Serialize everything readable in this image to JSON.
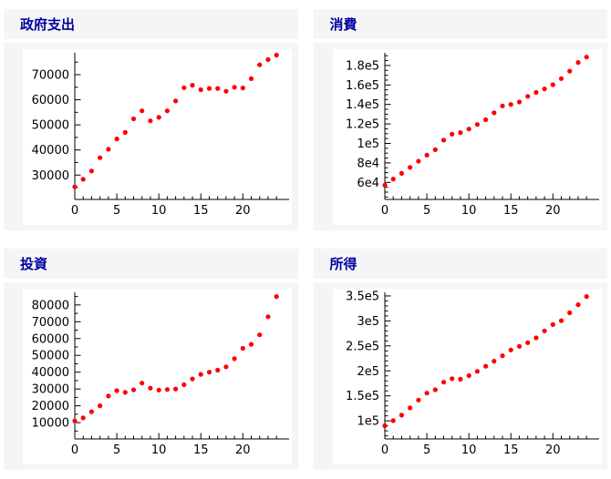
{
  "styles": {
    "panel_bg": "#f5f5f5",
    "chart_bg": "#ffffff",
    "title_color": "#0000A0",
    "axis_color": "#000000",
    "dot_color": "#ff0000"
  },
  "chart_data": [
    {
      "type": "scatter",
      "title": "政府支出",
      "x": [
        0,
        1,
        2,
        3,
        4,
        5,
        6,
        7,
        8,
        9,
        10,
        11,
        12,
        13,
        14,
        15,
        16,
        17,
        18,
        19,
        20,
        21,
        22,
        23,
        24
      ],
      "values": [
        25300,
        28300,
        31600,
        36900,
        40300,
        44400,
        47000,
        52400,
        55600,
        51600,
        53000,
        55600,
        59500,
        64800,
        65800,
        64000,
        64500,
        64500,
        63400,
        65000,
        64700,
        68400,
        73900,
        76000,
        77800
      ],
      "marker_color": "#ff0000",
      "xlim": [
        0,
        25.5
      ],
      "ylim": [
        20300,
        78700
      ],
      "xticks": [
        {
          "v": 0,
          "label": "0"
        },
        {
          "v": 5,
          "label": "5"
        },
        {
          "v": 10,
          "label": "10"
        },
        {
          "v": 15,
          "label": "15"
        },
        {
          "v": 20,
          "label": "20"
        }
      ],
      "xminor_step": 1,
      "yticks": [
        {
          "v": 30000,
          "label": "30000"
        },
        {
          "v": 40000,
          "label": "40000"
        },
        {
          "v": 50000,
          "label": "50000"
        },
        {
          "v": 60000,
          "label": "60000"
        },
        {
          "v": 70000,
          "label": "70000"
        }
      ],
      "yminor_step": 5000,
      "grid": false,
      "legend": "none"
    },
    {
      "type": "scatter",
      "title": "消費",
      "x": [
        0,
        1,
        2,
        3,
        4,
        5,
        6,
        7,
        8,
        9,
        10,
        11,
        12,
        13,
        14,
        15,
        16,
        17,
        18,
        19,
        20,
        21,
        22,
        23,
        24
      ],
      "values": [
        57200,
        63400,
        69200,
        75400,
        81800,
        88000,
        93500,
        103400,
        109500,
        111100,
        114800,
        119400,
        124300,
        131400,
        138500,
        140000,
        142500,
        148300,
        152300,
        156000,
        160300,
        166500,
        174200,
        183100,
        188600
      ],
      "marker_color": "#ff0000",
      "xlim": [
        0,
        25.5
      ],
      "ylim": [
        42500,
        193000
      ],
      "xticks": [
        {
          "v": 0,
          "label": "0"
        },
        {
          "v": 5,
          "label": "5"
        },
        {
          "v": 10,
          "label": "10"
        },
        {
          "v": 15,
          "label": "15"
        },
        {
          "v": 20,
          "label": "20"
        }
      ],
      "xminor_step": 1,
      "yticks": [
        {
          "v": 60000,
          "label": "6e4"
        },
        {
          "v": 80000,
          "label": "8e4"
        },
        {
          "v": 100000,
          "label": "1e5"
        },
        {
          "v": 120000,
          "label": "1.2e5"
        },
        {
          "v": 140000,
          "label": "1.4e5"
        },
        {
          "v": 160000,
          "label": "1.6e5"
        },
        {
          "v": 180000,
          "label": "1.8e5"
        }
      ],
      "yminor_step": 5000,
      "grid": false,
      "legend": "none"
    },
    {
      "type": "scatter",
      "title": "投資",
      "x": [
        0,
        1,
        2,
        3,
        4,
        5,
        6,
        7,
        8,
        9,
        10,
        11,
        12,
        13,
        14,
        15,
        16,
        17,
        18,
        19,
        20,
        21,
        22,
        23,
        24
      ],
      "values": [
        11000,
        12800,
        16500,
        20000,
        25800,
        29000,
        28000,
        29500,
        33500,
        30500,
        29400,
        29700,
        30000,
        32500,
        36000,
        38700,
        40000,
        41200,
        43200,
        48000,
        54200,
        56600,
        62200,
        73000,
        85000
      ],
      "marker_color": "#ff0000",
      "xlim": [
        0,
        25.5
      ],
      "ylim": [
        300,
        87500
      ],
      "xticks": [
        {
          "v": 0,
          "label": "0"
        },
        {
          "v": 5,
          "label": "5"
        },
        {
          "v": 10,
          "label": "10"
        },
        {
          "v": 15,
          "label": "15"
        },
        {
          "v": 20,
          "label": "20"
        }
      ],
      "xminor_step": 1,
      "yticks": [
        {
          "v": 10000,
          "label": "10000"
        },
        {
          "v": 20000,
          "label": "20000"
        },
        {
          "v": 30000,
          "label": "30000"
        },
        {
          "v": 40000,
          "label": "40000"
        },
        {
          "v": 50000,
          "label": "50000"
        },
        {
          "v": 60000,
          "label": "60000"
        },
        {
          "v": 70000,
          "label": "70000"
        },
        {
          "v": 80000,
          "label": "80000"
        }
      ],
      "yminor_step": 5000,
      "grid": false,
      "legend": "none"
    },
    {
      "type": "scatter",
      "title": "所得",
      "x": [
        0,
        1,
        2,
        3,
        4,
        5,
        6,
        7,
        8,
        9,
        10,
        11,
        12,
        13,
        14,
        15,
        16,
        17,
        18,
        19,
        20,
        21,
        22,
        23,
        24
      ],
      "values": [
        90300,
        100500,
        111400,
        125900,
        141600,
        155500,
        162200,
        177300,
        184500,
        183300,
        190500,
        199000,
        209300,
        219500,
        230400,
        241900,
        249100,
        256400,
        266000,
        280000,
        292600,
        300500,
        316200,
        332500,
        348800
      ],
      "marker_color": "#ff0000",
      "xlim": [
        0,
        25.5
      ],
      "ylim": [
        63800,
        357200
      ],
      "xticks": [
        {
          "v": 0,
          "label": "0"
        },
        {
          "v": 5,
          "label": "5"
        },
        {
          "v": 10,
          "label": "10"
        },
        {
          "v": 15,
          "label": "15"
        },
        {
          "v": 20,
          "label": "20"
        }
      ],
      "xminor_step": 1,
      "yticks": [
        {
          "v": 100000,
          "label": "1e5"
        },
        {
          "v": 150000,
          "label": "1.5e5"
        },
        {
          "v": 200000,
          "label": "2e5"
        },
        {
          "v": 250000,
          "label": "2.5e5"
        },
        {
          "v": 300000,
          "label": "3e5"
        },
        {
          "v": 350000,
          "label": "3.5e5"
        }
      ],
      "yminor_step": 10000,
      "grid": false,
      "legend": "none"
    }
  ]
}
